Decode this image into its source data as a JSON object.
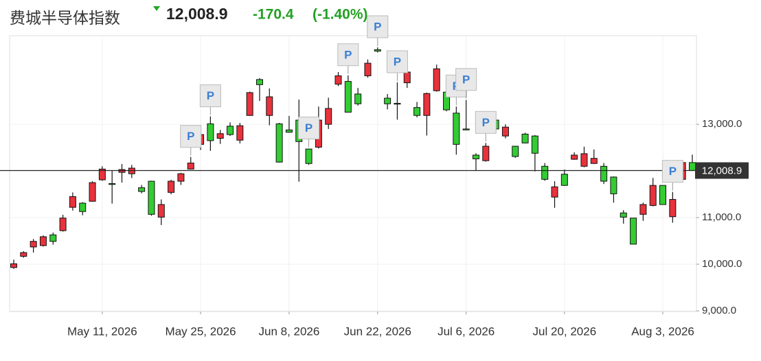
{
  "chart_data": {
    "type": "candlestick",
    "title": "费城半导体指数",
    "last_price": {
      "value": 12008.9,
      "label": "12,008.9"
    },
    "change": "-170.4",
    "change_pct": "(-1.40%)",
    "x": [
      "2026-04-28",
      "2026-04-29",
      "2026-04-30",
      "2026-05-01",
      "2026-05-04",
      "2026-05-05",
      "2026-05-06",
      "2026-05-07",
      "2026-05-08",
      "2026-05-11",
      "2026-05-12",
      "2026-05-13",
      "2026-05-14",
      "2026-05-15",
      "2026-05-18",
      "2026-05-19",
      "2026-05-20",
      "2026-05-21",
      "2026-05-22",
      "2026-05-26",
      "2026-05-27",
      "2026-05-28",
      "2026-05-29",
      "2026-06-01",
      "2026-06-02",
      "2026-06-03",
      "2026-06-04",
      "2026-06-05",
      "2026-06-08",
      "2026-06-09",
      "2026-06-10",
      "2026-06-11",
      "2026-06-12",
      "2026-06-15",
      "2026-06-16",
      "2026-06-17",
      "2026-06-18",
      "2026-06-22",
      "2026-06-23",
      "2026-06-24",
      "2026-06-25",
      "2026-06-26",
      "2026-06-29",
      "2026-06-30",
      "2026-07-01",
      "2026-07-02",
      "2026-07-06",
      "2026-07-07",
      "2026-07-08",
      "2026-07-09",
      "2026-07-10",
      "2026-07-13",
      "2026-07-14",
      "2026-07-15",
      "2026-07-16",
      "2026-07-17",
      "2026-07-20",
      "2026-07-21",
      "2026-07-22",
      "2026-07-23",
      "2026-07-24",
      "2026-07-27",
      "2026-07-28",
      "2026-07-29",
      "2026-07-30",
      "2026-07-31",
      "2026-08-03",
      "2026-08-04",
      "2026-08-05",
      "2026-08-06"
    ],
    "open": [
      9930,
      10170,
      10370,
      10400,
      10630,
      10720,
      11220,
      11310,
      11350,
      11810,
      11730,
      11970,
      11940,
      11640,
      11780,
      11010,
      11540,
      11780,
      12040,
      12570,
      13010,
      12700,
      12960,
      12660,
      13190,
      13960,
      13190,
      13010,
      12880,
      13090,
      12470,
      12510,
      13000,
      13860,
      13920,
      13650,
      14040,
      14600,
      13560,
      13450,
      13890,
      13360,
      13190,
      13720,
      13690,
      13240,
      12900,
      12340,
      12220,
      13090,
      12750,
      12530,
      12790,
      12750,
      12100,
      11440,
      11930,
      12250,
      12100,
      12160,
      12100,
      11870,
      11100,
      10990,
      11070,
      11260,
      11690,
      11020,
      11820,
      12180
    ],
    "high": [
      10100,
      10280,
      10540,
      10620,
      10680,
      11060,
      11540,
      11330,
      11780,
      12100,
      12000,
      12150,
      12130,
      11700,
      11790,
      11390,
      11810,
      11960,
      12300,
      12960,
      13170,
      12880,
      13040,
      13030,
      13700,
      13990,
      13770,
      13030,
      13180,
      13530,
      12480,
      13380,
      13570,
      14120,
      14050,
      13780,
      14390,
      14650,
      13650,
      13900,
      14160,
      13480,
      13680,
      14280,
      13750,
      13380,
      13520,
      12380,
      12600,
      13110,
      13000,
      12540,
      12820,
      12770,
      12170,
      11780,
      12030,
      12400,
      12520,
      12460,
      12170,
      11880,
      11160,
      10990,
      11320,
      11850,
      11690,
      11550,
      12190,
      12350
    ],
    "low": [
      9900,
      10140,
      10250,
      10380,
      10420,
      10700,
      11150,
      11050,
      11340,
      11790,
      11300,
      11750,
      11850,
      11520,
      11040,
      10840,
      11500,
      11700,
      12030,
      12450,
      12430,
      12580,
      12750,
      12590,
      13180,
      13500,
      12980,
      12180,
      12820,
      11770,
      12130,
      12480,
      12900,
      13820,
      13260,
      13400,
      14000,
      14540,
      13320,
      13100,
      13780,
      13150,
      12760,
      13700,
      13280,
      12350,
      12880,
      12000,
      12200,
      12880,
      12700,
      12280,
      12590,
      11990,
      11790,
      11210,
      11680,
      12240,
      12080,
      12150,
      11720,
      11320,
      10870,
      10430,
      10930,
      11240,
      11280,
      10890,
      11800,
      12000
    ],
    "close": [
      10010,
      10250,
      10490,
      10590,
      10490,
      10990,
      11450,
      11130,
      11750,
      12040,
      11710,
      12030,
      12060,
      11560,
      11070,
      11280,
      11780,
      11940,
      12170,
      12780,
      12650,
      12800,
      12780,
      12970,
      13680,
      13850,
      13590,
      12190,
      12830,
      12630,
      12160,
      13090,
      13340,
      14040,
      13260,
      13440,
      14310,
      14570,
      13440,
      13440,
      14120,
      13190,
      13660,
      14190,
      13310,
      12570,
      12880,
      12260,
      12530,
      12900,
      12940,
      12310,
      12600,
      12380,
      11820,
      11660,
      11690,
      12340,
      12370,
      12270,
      11780,
      11510,
      11010,
      10430,
      11280,
      11690,
      11280,
      11390,
      12180,
      12008.9
    ],
    "up_color": "#e8323c",
    "down_color": "#33cc33",
    "ylim": [
      8985,
      14900
    ],
    "yticks": [
      {
        "value": 9000,
        "label": "9,000.0"
      },
      {
        "value": 10000,
        "label": "10,000.0"
      },
      {
        "value": 11000,
        "label": "11,000.0"
      },
      {
        "value": 13000,
        "label": "13,000.0"
      }
    ],
    "xticks": [
      {
        "value": "2026-05-11",
        "label": "May 11, 2026"
      },
      {
        "value": "2026-05-25",
        "label": "May 25, 2026"
      },
      {
        "value": "2026-06-08",
        "label": "Jun 8, 2026"
      },
      {
        "value": "2026-06-22",
        "label": "Jun 22, 2026"
      },
      {
        "value": "2026-07-06",
        "label": "Jul 6, 2026"
      },
      {
        "value": "2026-07-20",
        "label": "Jul 20, 2026"
      },
      {
        "value": "2026-08-03",
        "label": "Aug 3, 2026"
      }
    ],
    "grid": true,
    "markers": [
      {
        "x": "2026-05-22",
        "label": "P"
      },
      {
        "x": "2026-05-27",
        "label": "P"
      },
      {
        "x": "2026-06-10",
        "label": "P"
      },
      {
        "x": "2026-06-16",
        "label": "P"
      },
      {
        "x": "2026-06-22",
        "label": "P"
      },
      {
        "x": "2026-06-24",
        "label": "P"
      },
      {
        "x": "2026-07-02",
        "label": "P"
      },
      {
        "x": "2026-07-06",
        "label": "P"
      },
      {
        "x": "2026-07-08",
        "label": "P"
      },
      {
        "x": "2026-08-04",
        "label": "P"
      }
    ]
  }
}
